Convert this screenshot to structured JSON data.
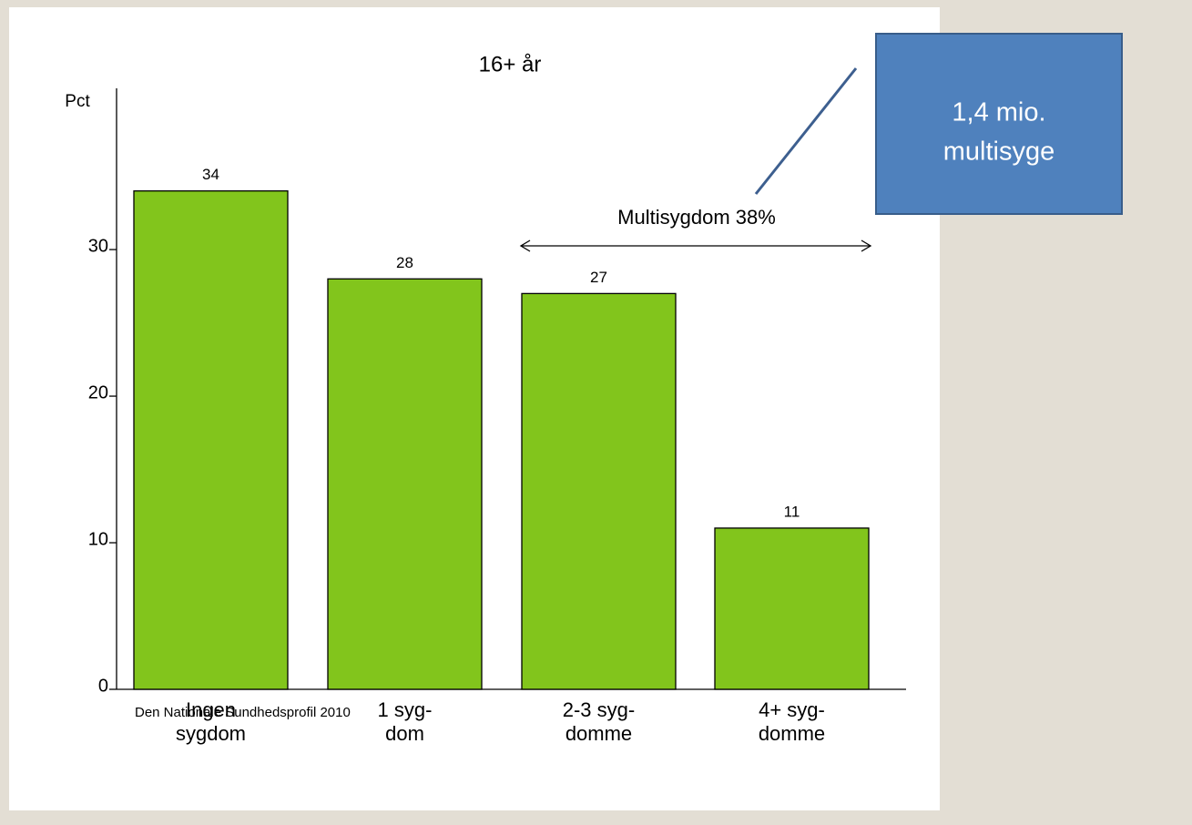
{
  "chart_data": {
    "type": "bar",
    "title": "16+ år",
    "y_label": "Pct",
    "categories": [
      [
        "Ingen",
        "sygdom"
      ],
      [
        "1 syg-",
        "dom"
      ],
      [
        "2-3 syg-",
        "domme"
      ],
      [
        "4+ syg-",
        "domme"
      ]
    ],
    "values": [
      34,
      28,
      27,
      11
    ],
    "color": "#82c51c",
    "ylim": [
      0,
      41
    ],
    "yticks": [
      0,
      10,
      20,
      30
    ],
    "annotation": "Multisygdom 38%",
    "source": "Den Nationale Sundhedsprofil 2010",
    "callout": [
      "1,4 mio.",
      "multisyge"
    ]
  }
}
